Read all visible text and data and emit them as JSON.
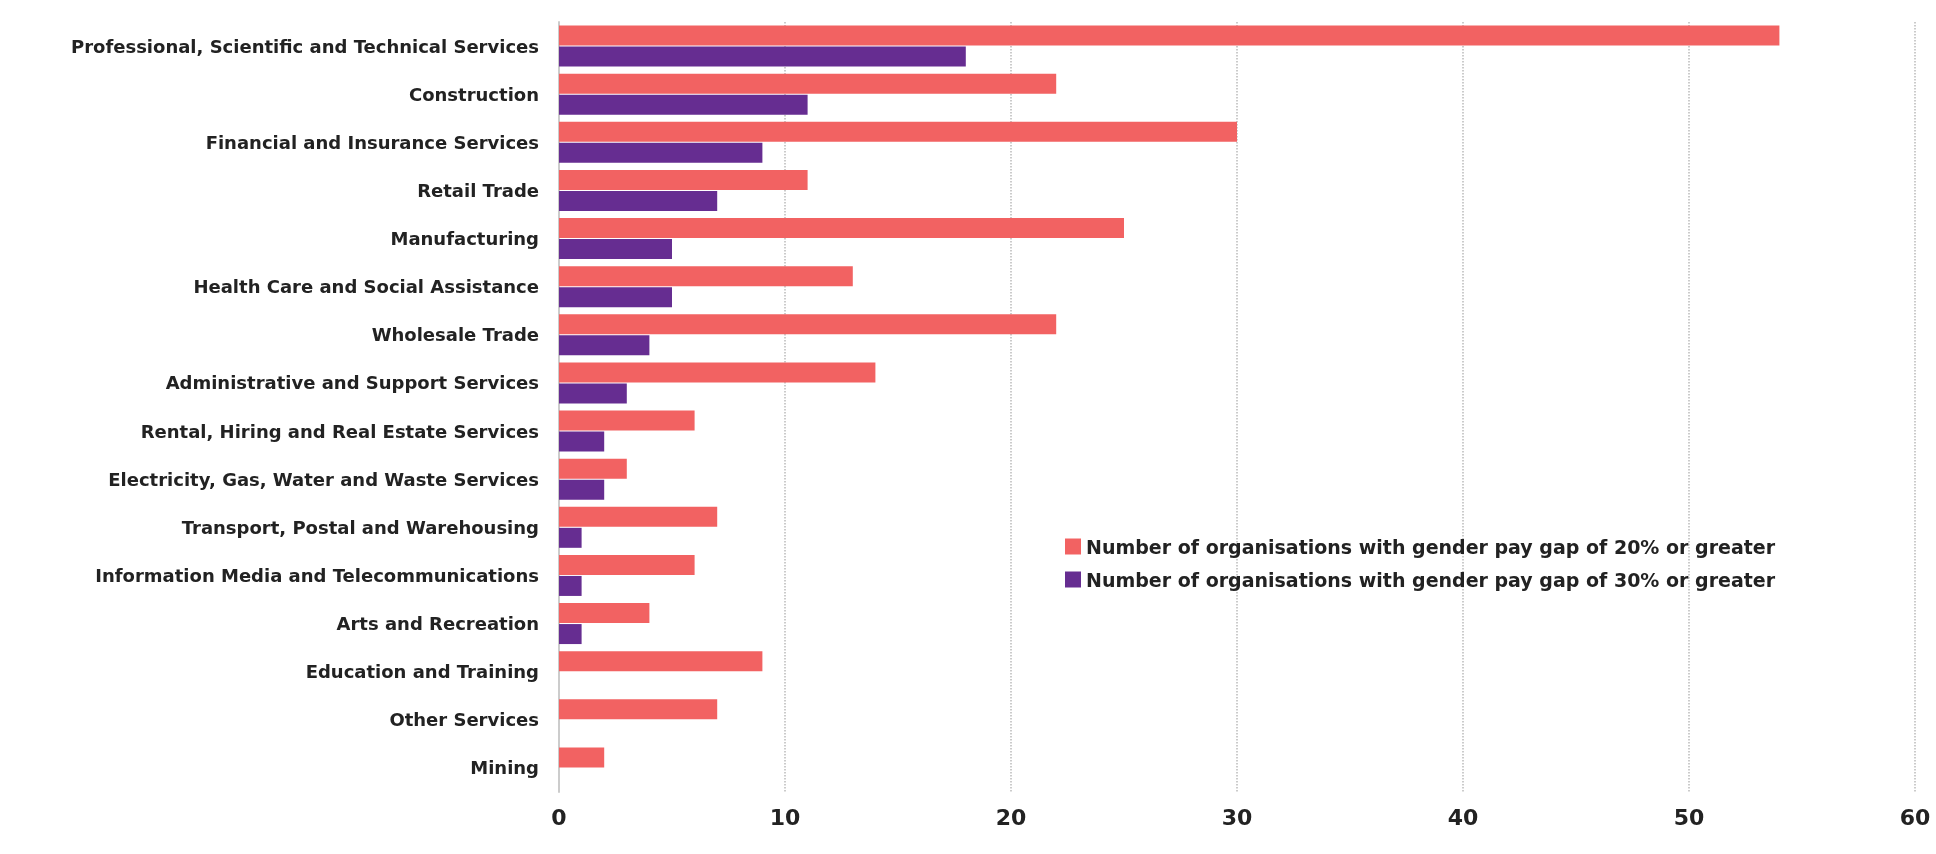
{
  "chart_data": {
    "type": "bar",
    "orientation": "horizontal",
    "categories": [
      "Professional, Scientific and Technical Services",
      "Construction",
      "Financial and Insurance Services",
      "Retail Trade",
      "Manufacturing",
      "Health Care and Social Assistance",
      "Wholesale Trade",
      "Administrative and Support Services",
      "Rental, Hiring and Real Estate Services",
      "Electricity, Gas, Water and Waste Services",
      "Transport, Postal and Warehousing",
      "Information Media and Telecommunications",
      "Arts and Recreation",
      "Education and Training",
      "Other Services",
      "Mining"
    ],
    "series": [
      {
        "name": "Number of organisations with gender pay gap of 20% or greater",
        "color": "#f26262",
        "values": [
          54,
          22,
          30,
          11,
          25,
          13,
          22,
          14,
          6,
          3,
          7,
          6,
          4,
          9,
          7,
          2
        ]
      },
      {
        "name": "Number of organisations with gender pay gap of 30% or greater",
        "color": "#662d91",
        "values": [
          18,
          11,
          9,
          7,
          5,
          5,
          4,
          3,
          2,
          2,
          1,
          1,
          1,
          0,
          0,
          0
        ]
      }
    ],
    "xlim": [
      0,
      60
    ],
    "xticks": [
      0,
      10,
      20,
      30,
      40,
      50,
      60
    ],
    "grid": "x",
    "legend": "right"
  }
}
